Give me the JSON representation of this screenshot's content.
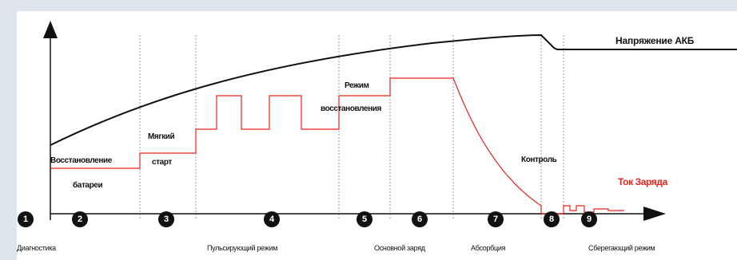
{
  "labels": {
    "voltage": "Напряжение АКБ",
    "current": "Ток Заряда",
    "recovery_line1": "Восстановление",
    "recovery_line2": "батареи",
    "soft_start_line1": "Мягкий",
    "soft_start_line2": "старт",
    "recovery_mode_line1": "Режим",
    "recovery_mode_line2": "восстановления",
    "control": "Контроль"
  },
  "stages": [
    {
      "number": "1",
      "label": "Диагностика"
    },
    {
      "number": "2",
      "label": ""
    },
    {
      "number": "3",
      "label": ""
    },
    {
      "number": "4",
      "label": "Пульсирующий режим"
    },
    {
      "number": "5",
      "label": ""
    },
    {
      "number": "6",
      "label": "Основной заряд"
    },
    {
      "number": "7",
      "label": "Абсорбция"
    },
    {
      "number": "8",
      "label": ""
    },
    {
      "number": "9",
      "label": "Сберегающий режим"
    }
  ],
  "colors": {
    "background": "#dfe5ec",
    "panel": "#ffffff",
    "voltage_line": "#111111",
    "current_line": "#e8231c",
    "stage_badge": "#111111"
  }
}
